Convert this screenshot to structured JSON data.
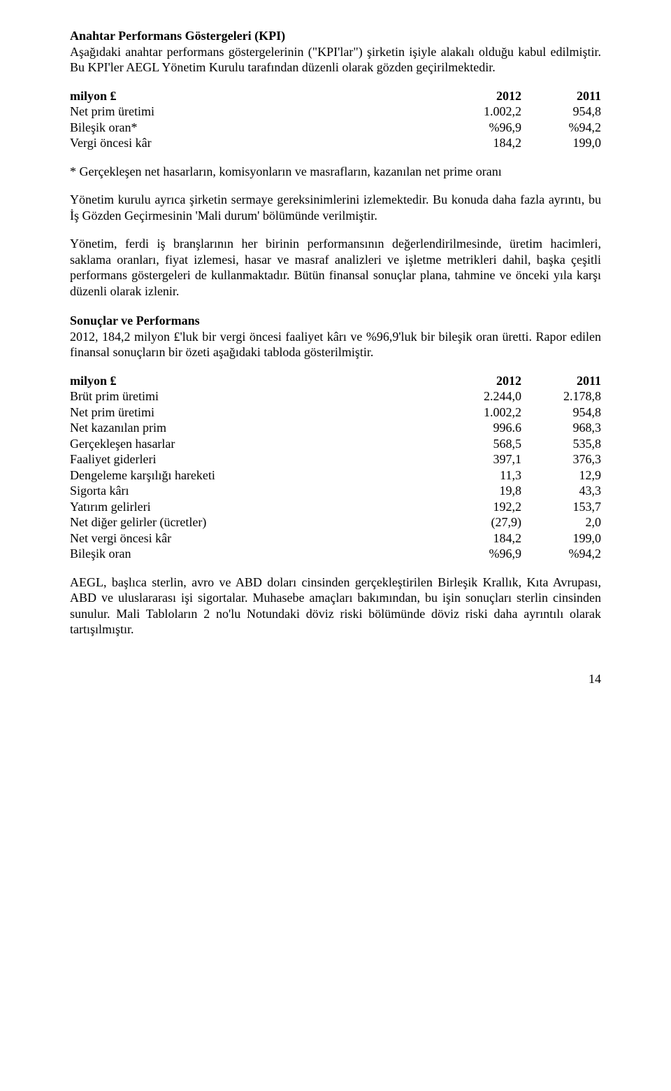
{
  "kpi_heading": "Anahtar Performans Göstergeleri (KPI)",
  "kpi_para": "Aşağıdaki anahtar performans göstergelerinin (\"KPI'lar\") şirketin işiyle alakalı olduğu kabul edilmiştir. Bu KPI'ler AEGL Yönetim Kurulu tarafından düzenli olarak gözden geçirilmektedir.",
  "kpi_table": {
    "header": {
      "label": "milyon ₤",
      "y2012": "2012",
      "y2011": "2011"
    },
    "rows": [
      {
        "label": "Net prim üretimi",
        "y2012": "1.002,2",
        "y2011": "954,8"
      },
      {
        "label": "Bileşik oran*",
        "y2012": "%96,9",
        "y2011": "%94,2"
      },
      {
        "label": "Vergi öncesi kâr",
        "y2012": "184,2",
        "y2011": "199,0"
      }
    ]
  },
  "kpi_footnote": "* Gerçekleşen net hasarların, komisyonların ve masrafların, kazanılan net prime oranı",
  "kpi_para2": "Yönetim kurulu ayrıca şirketin sermaye gereksinimlerini izlemektedir. Bu konuda daha fazla ayrıntı, bu İş Gözden Geçirmesinin 'Mali durum' bölümünde verilmiştir.",
  "kpi_para3": "Yönetim, ferdi iş branşlarının her birinin performansının değerlendirilmesinde, üretim hacimleri, saklama oranları, fiyat izlemesi, hasar ve masraf analizleri ve işletme metrikleri dahil, başka çeşitli performans göstergeleri de kullanmaktadır. Bütün finansal sonuçlar plana, tahmine ve önceki yıla karşı düzenli olarak izlenir.",
  "results_heading": "Sonuçlar ve Performans",
  "results_para1": "2012, 184,2 milyon ₤'luk bir vergi öncesi faaliyet kârı ve %96,9'luk bir bileşik oran üretti. Rapor edilen finansal sonuçların bir özeti aşağıdaki tabloda gösterilmiştir.",
  "results_table": {
    "header": {
      "label": "milyon ₤",
      "y2012": "2012",
      "y2011": "2011"
    },
    "rows": [
      {
        "label": "Brüt prim üretimi",
        "y2012": "2.244,0",
        "y2011": "2.178,8"
      },
      {
        "label": "Net prim üretimi",
        "y2012": "1.002,2",
        "y2011": "954,8"
      },
      {
        "label": "Net kazanılan prim",
        "y2012": "996.6",
        "y2011": "968,3"
      },
      {
        "label": "Gerçekleşen hasarlar",
        "y2012": "568,5",
        "y2011": "535,8"
      },
      {
        "label": "Faaliyet giderleri",
        "y2012": "397,1",
        "y2011": "376,3"
      },
      {
        "label": "Dengeleme karşılığı hareketi",
        "y2012": "11,3",
        "y2011": "12,9"
      },
      {
        "label": "Sigorta kârı",
        "y2012": "19,8",
        "y2011": "43,3"
      },
      {
        "label": "Yatırım gelirleri",
        "y2012": "192,2",
        "y2011": "153,7"
      },
      {
        "label": "Net diğer gelirler (ücretler)",
        "y2012": "(27,9)",
        "y2011": "2,0"
      },
      {
        "label": "Net vergi öncesi kâr",
        "y2012": "184,2",
        "y2011": "199,0"
      },
      {
        "label": "Bileşik oran",
        "y2012": "%96,9",
        "y2011": "%94,2"
      }
    ]
  },
  "results_para2": "AEGL, başlıca sterlin, avro ve ABD doları cinsinden gerçekleştirilen Birleşik Krallık, Kıta Avrupası, ABD ve uluslararası işi sigortalar. Muhasebe amaçları bakımından, bu işin sonuçları sterlin cinsinden sunulur. Mali Tabloların 2 no'lu Notundaki döviz riski bölümünde döviz riski daha ayrıntılı olarak tartışılmıştır.",
  "page_number": "14"
}
